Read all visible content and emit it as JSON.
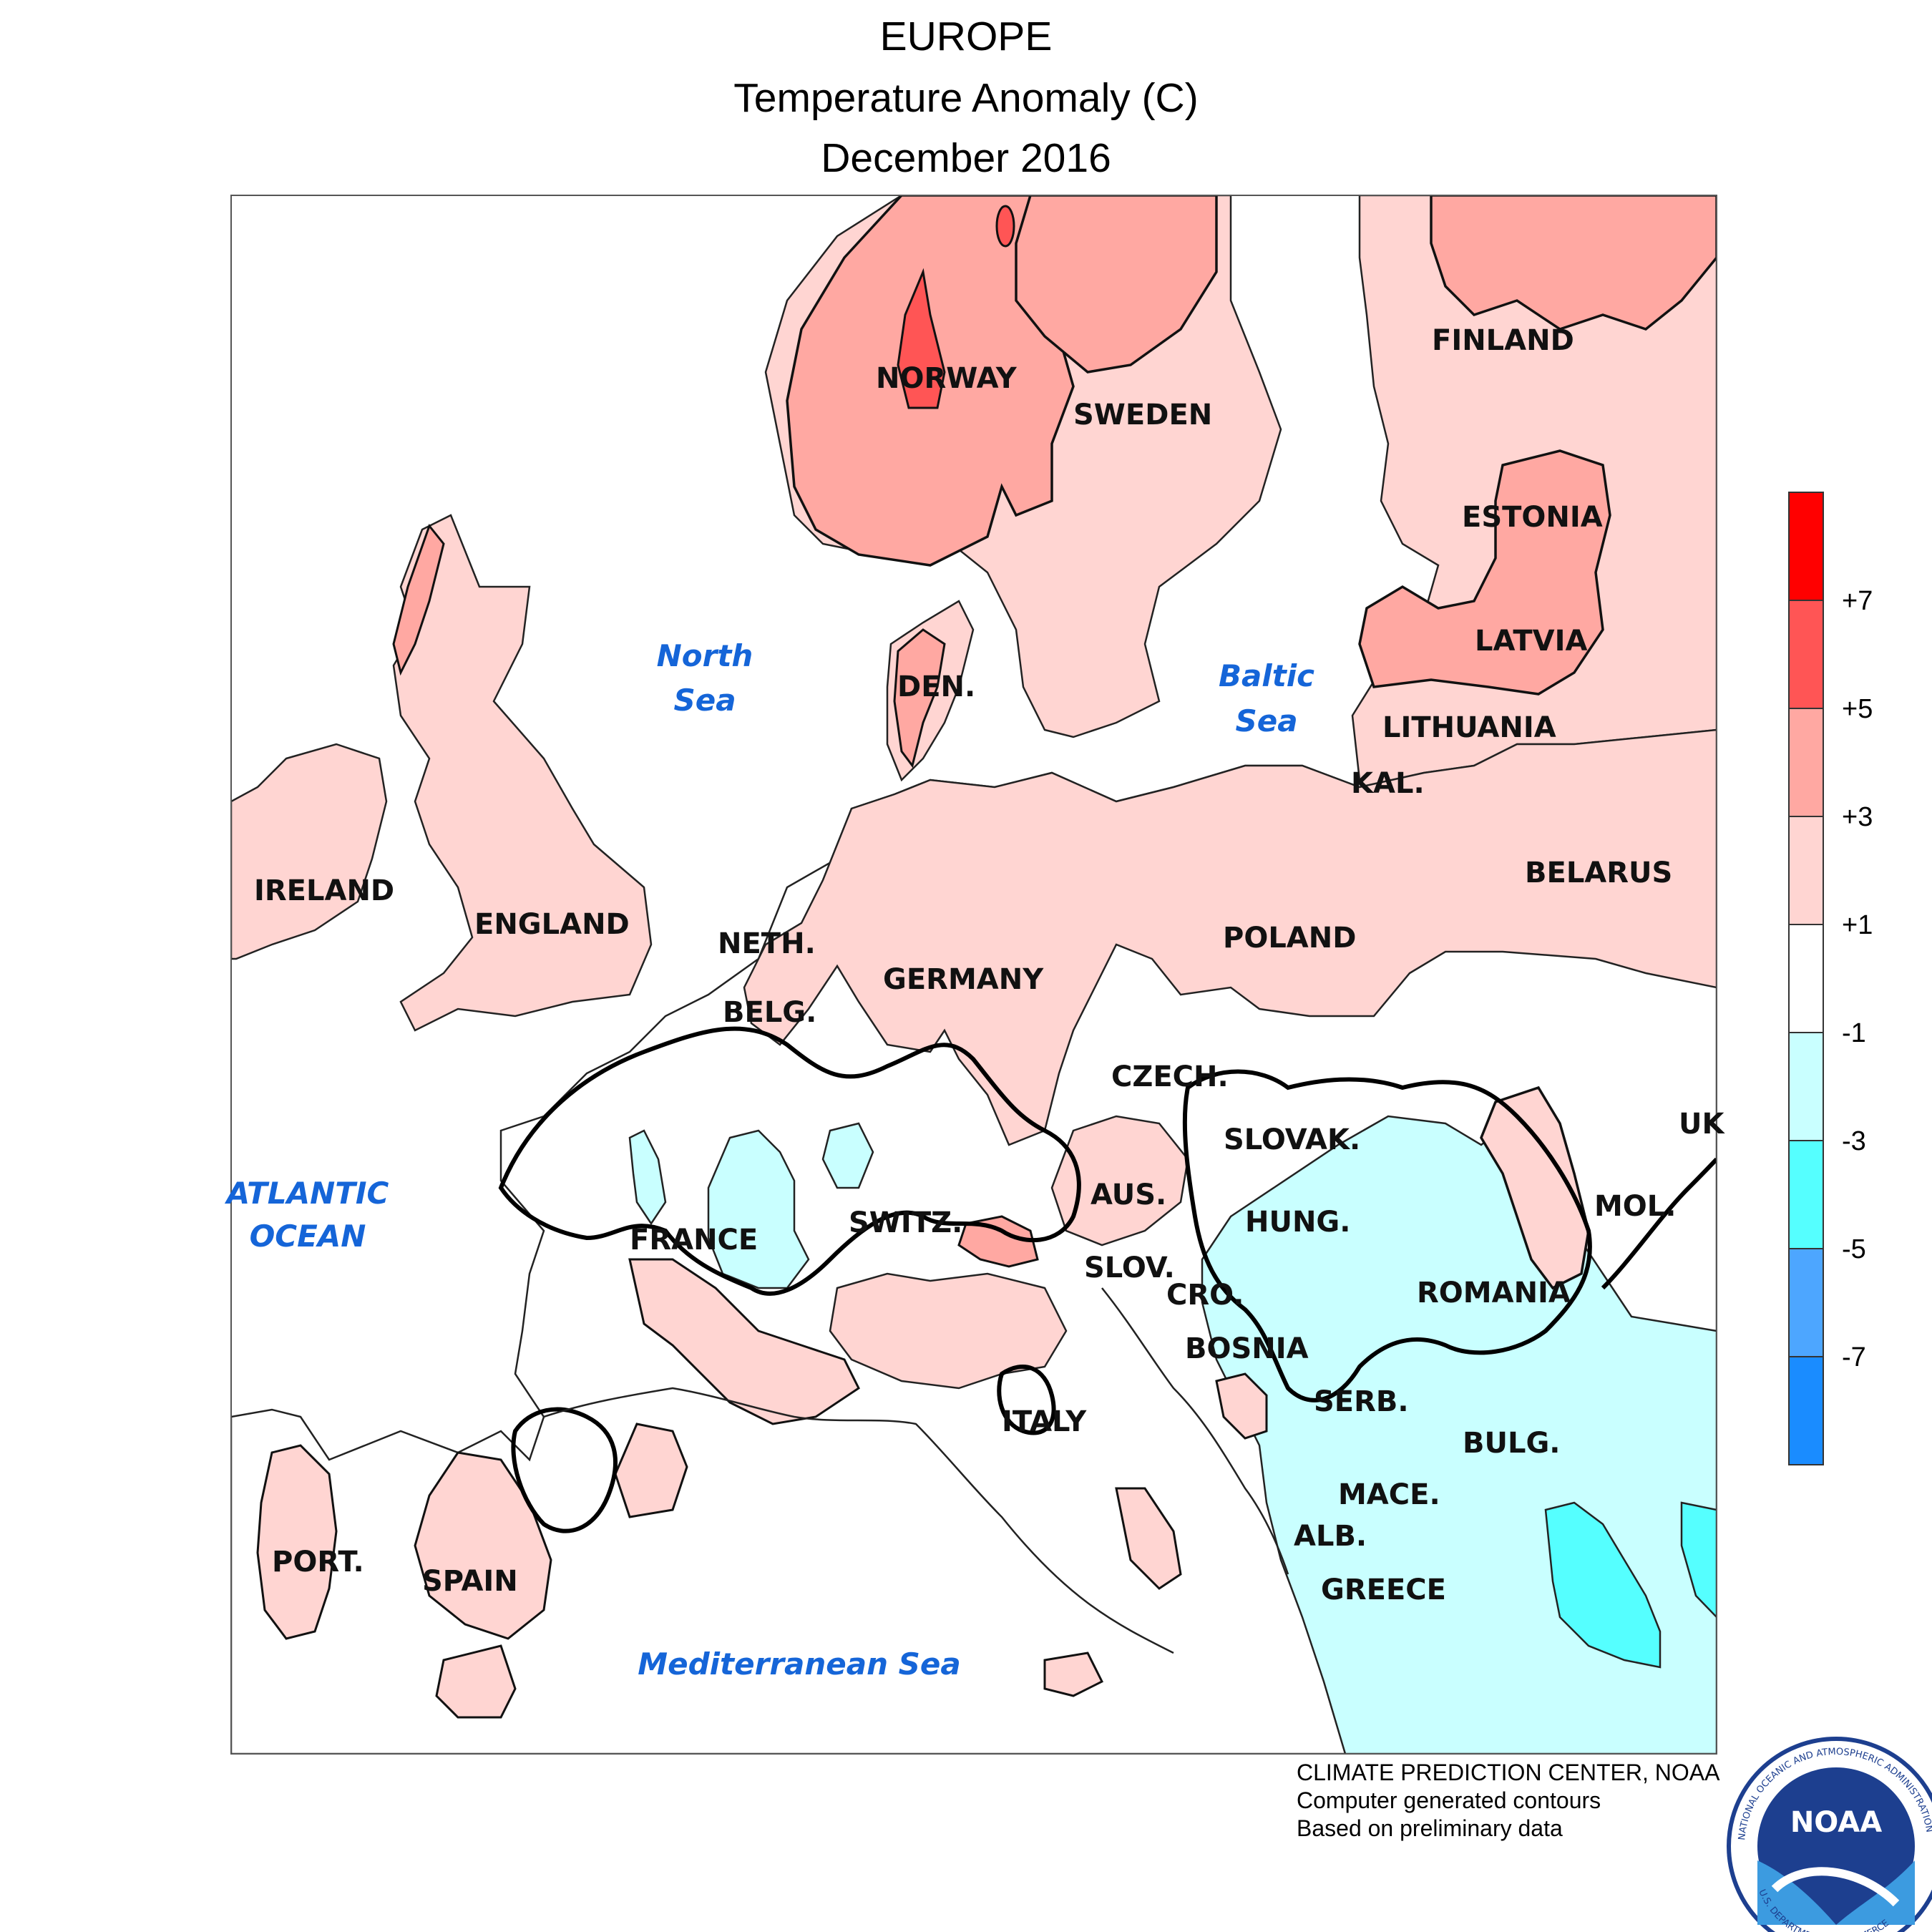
{
  "title": {
    "line1": "EUROPE",
    "line2": "Temperature Anomaly (C)",
    "line3": "December 2016"
  },
  "map": {
    "countries": [
      {
        "key": "norway",
        "label": "NORWAY"
      },
      {
        "key": "sweden",
        "label": "SWEDEN"
      },
      {
        "key": "finland",
        "label": "FINLAND"
      },
      {
        "key": "estonia",
        "label": "ESTONIA"
      },
      {
        "key": "latvia",
        "label": "LATVIA"
      },
      {
        "key": "lithuania",
        "label": "LITHUANIA"
      },
      {
        "key": "kal",
        "label": "KAL."
      },
      {
        "key": "belarus",
        "label": "BELARUS"
      },
      {
        "key": "den",
        "label": "DEN."
      },
      {
        "key": "ireland",
        "label": "IRELAND"
      },
      {
        "key": "england",
        "label": "ENGLAND"
      },
      {
        "key": "neth",
        "label": "NETH."
      },
      {
        "key": "belg",
        "label": "BELG."
      },
      {
        "key": "germany",
        "label": "GERMANY"
      },
      {
        "key": "poland",
        "label": "POLAND"
      },
      {
        "key": "czech",
        "label": "CZECH."
      },
      {
        "key": "slovak",
        "label": "SLOVAK."
      },
      {
        "key": "aus",
        "label": "AUS."
      },
      {
        "key": "hung",
        "label": "HUNG."
      },
      {
        "key": "switz",
        "label": "SWITZ."
      },
      {
        "key": "france",
        "label": "FRANCE"
      },
      {
        "key": "slov",
        "label": "SLOV."
      },
      {
        "key": "cro",
        "label": "CRO."
      },
      {
        "key": "bosnia",
        "label": "BOSNIA"
      },
      {
        "key": "serb",
        "label": "SERB."
      },
      {
        "key": "romania",
        "label": "ROMANIA"
      },
      {
        "key": "mol",
        "label": "MOL."
      },
      {
        "key": "uk",
        "label": "UK"
      },
      {
        "key": "bulg",
        "label": "BULG."
      },
      {
        "key": "mace",
        "label": "MACE."
      },
      {
        "key": "alb",
        "label": "ALB."
      },
      {
        "key": "greece",
        "label": "GREECE"
      },
      {
        "key": "italy",
        "label": "ITALY"
      },
      {
        "key": "port",
        "label": "PORT."
      },
      {
        "key": "spain",
        "label": "SPAIN"
      }
    ],
    "seas": {
      "north_sea_1": "North",
      "north_sea_2": "Sea",
      "baltic_1": "Baltic",
      "baltic_2": "Sea",
      "atlantic_1": "ATLANTIC",
      "atlantic_2": "OCEAN",
      "med": "Mediterranean Sea"
    }
  },
  "legend": {
    "bins": [
      {
        "color": "#ff0000"
      },
      {
        "color": "#ff5555"
      },
      {
        "color": "#ffa8a2"
      },
      {
        "color": "#ffd5d2"
      },
      {
        "color": "#ffffff"
      },
      {
        "color": "#c9ffff"
      },
      {
        "color": "#55ffff"
      },
      {
        "color": "#4da6ff"
      },
      {
        "color": "#1a8cff"
      }
    ],
    "ticks": [
      "+7",
      "+5",
      "+3",
      "+1",
      "-1",
      "-3",
      "-5",
      "-7"
    ]
  },
  "credits": {
    "line1": "CLIMATE PREDICTION CENTER, NOAA",
    "line2": "Computer generated contours",
    "line3": "Based on preliminary data"
  },
  "logo": {
    "text": "NOAA",
    "ring_top": "NATIONAL OCEANIC AND ATMOSPHERIC ADMINISTRATION",
    "ring_bottom": "U.S. DEPARTMENT OF COMMERCE"
  }
}
